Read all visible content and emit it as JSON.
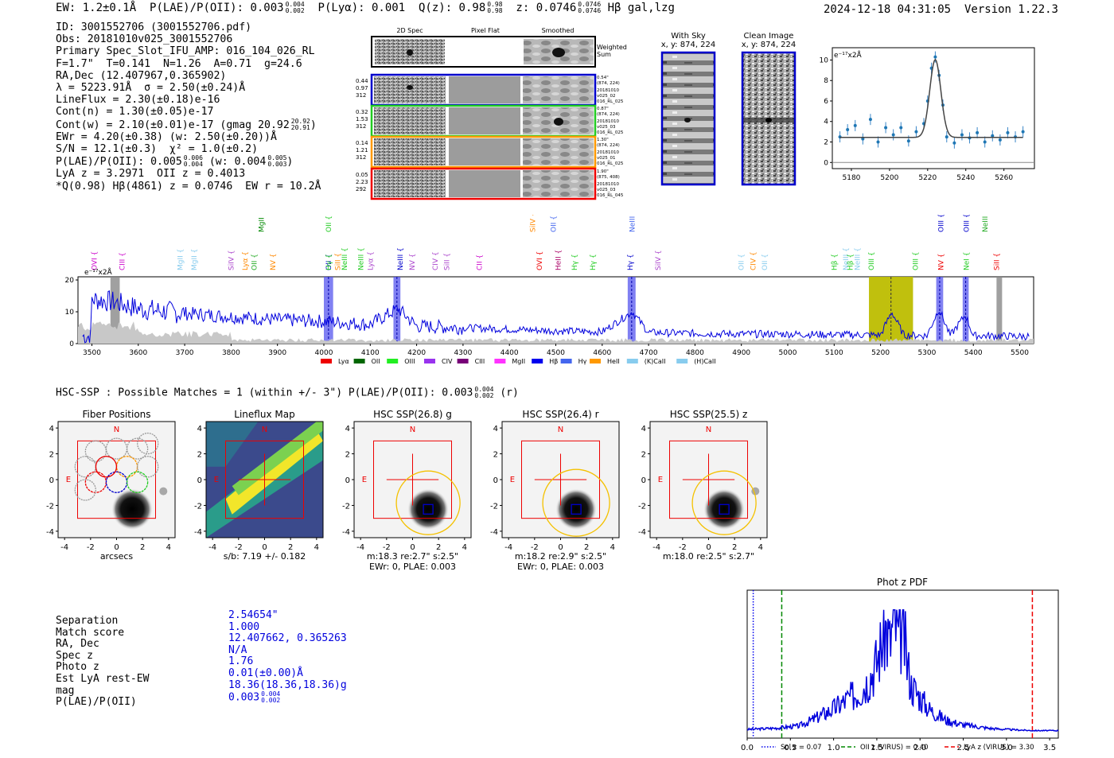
{
  "header": {
    "ew": "EW: 1.2±0.1Å",
    "plae_label": "P(LAE)/P(OII): 0.003",
    "plae_hi": "0.004",
    "plae_lo": "0.002",
    "plya": "P(Lyα): 0.001",
    "q_label": "Q(z): 0.98",
    "q_hi": "0.98",
    "q_lo": "0.98",
    "z_label": "z: 0.0746",
    "z_hi": "0.0746",
    "z_lo": "0.0746",
    "line_tag": "Hβ  gal,lzg",
    "timestamp": "2024-12-18 04:31:05",
    "version": "Version 1.22.3"
  },
  "info": {
    "id": "ID: 3001552706 (3001552706.pdf)",
    "obs": "Obs: 20181010v025_3001552706",
    "primary": "Primary Spec_Slot_IFU_AMP: 016_104_026_RL",
    "params": "F=1.7\"  T=0.141  N=1.26  A=0.71  g=24.6",
    "radec": "RA,Dec (12.407967,0.365902)",
    "lambda": "λ = 5223.91Å  σ = 2.50(±0.24)Å",
    "lineflux": "LineFlux = 2.30(±0.18)e-16",
    "cont_n": "Cont(n) = 1.30(±0.05)e-17",
    "cont_w": "Cont(w) = 2.10(±0.01)e-17 (gmag 20.92",
    "cont_w_hi": "20.92",
    "cont_w_lo": "20.91",
    "cont_w_close": ")",
    "ewr": "EWr = 4.20(±0.38) (w: 2.50(±0.20))Å",
    "sn": "S/N = 12.1(±0.3)  χ² = 1.0(±0.2)",
    "plae": "P(LAE)/P(OII): 0.005",
    "plae_hi": "0.006",
    "plae_lo": "0.004",
    "plae_w": "(w: 0.004",
    "plae_w_hi": "0.005",
    "plae_w_lo": "0.003",
    "plae_w_close": ")",
    "lya": "LyA z = 3.2971  OII z = 0.4013",
    "q": "*Q(0.98) Hβ(4861) z = 0.0746  EW r = 10.2Å"
  },
  "cutouts": {
    "col_headers": [
      "2D Spec",
      "Pixel Flat",
      "Smoothed"
    ],
    "weighted_label": [
      "Weighted",
      "Sum"
    ],
    "rows": [
      {
        "left": [
          "0.44",
          "0.97",
          "312"
        ],
        "right": [
          "0.54\"",
          "(874, 224)",
          "20181010",
          "v025_02",
          "016_RL_025"
        ],
        "color": "#0000cc"
      },
      {
        "left": [
          "0.32",
          "1.53",
          "312"
        ],
        "right": [
          "0.87\"",
          "(874, 224)",
          "20181010",
          "v025_03",
          "016_RL_025"
        ],
        "color": "#22cc22"
      },
      {
        "left": [
          "0.14",
          "1.21",
          "312"
        ],
        "right": [
          "1.30\"",
          "(874, 224)",
          "20181010",
          "v025_01",
          "016_RL_025"
        ],
        "color": "#ff9900"
      },
      {
        "left": [
          "0.05",
          "2.23",
          "292"
        ],
        "right": [
          "1.90\"",
          "(875, 408)",
          "20181010",
          "v025_03",
          "016_RL_045"
        ],
        "color": "#ee0000"
      }
    ]
  },
  "sky_panels": {
    "with_sky_title": "With Sky",
    "with_sky_xy": "x, y: 874, 224",
    "clean_title": "Clean Image",
    "clean_xy": "x, y: 874, 224"
  },
  "zoom_plot": {
    "unit_label": "e⁻¹⁷x2Å",
    "xticks": [
      "5180",
      "5200",
      "5220",
      "5240",
      "5260"
    ],
    "yticks": [
      "0",
      "2",
      "4",
      "6",
      "8",
      "10"
    ]
  },
  "full_spectrum": {
    "unit_label": "e⁻¹⁷x2Å",
    "xticks": [
      "3500",
      "3600",
      "3700",
      "3800",
      "3900",
      "4000",
      "4100",
      "4200",
      "4300",
      "4400",
      "4500",
      "4600",
      "4700",
      "4800",
      "4900",
      "5000",
      "5100",
      "5200",
      "5300",
      "5400",
      "5500"
    ],
    "yticks": [
      "0",
      "10",
      "20"
    ],
    "lines": [
      {
        "name": "OVI",
        "color": "#cc00cc"
      },
      {
        "name": "CIII",
        "color": "#cc00cc"
      },
      {
        "name": "MgII",
        "color": "#88ccee"
      },
      {
        "name": "MgII",
        "color": "#88ccee"
      },
      {
        "name": "SiIV",
        "color": "#aa44cc"
      },
      {
        "name": "Lyα",
        "color": "#ff8800"
      },
      {
        "name": "OII",
        "color": "#22aa22"
      },
      {
        "name": "MgII",
        "color": "#008800"
      },
      {
        "name": "NV",
        "color": "#ff8800"
      },
      {
        "name": "OII",
        "color": "#22cc22"
      },
      {
        "name": "OII",
        "color": "#0000cc"
      },
      {
        "name": "Hγ",
        "color": "#22cc22"
      },
      {
        "name": "SiII",
        "color": "#ff8800"
      },
      {
        "name": "NeIII",
        "color": "#22cc22"
      },
      {
        "name": "NeIII",
        "color": "#22cc22"
      },
      {
        "name": "Lyα",
        "color": "#aa44cc"
      },
      {
        "name": "NeIII",
        "color": "#0000cc"
      },
      {
        "name": "NV",
        "color": "#aa44cc"
      },
      {
        "name": "CIV",
        "color": "#aa44cc"
      },
      {
        "name": "SiII",
        "color": "#aa44cc"
      },
      {
        "name": "CII",
        "color": "#cc00cc"
      },
      {
        "name": "SiIV",
        "color": "#ff8800"
      },
      {
        "name": "OVI",
        "color": "#ee0000"
      },
      {
        "name": "OII",
        "color": "#4466ee"
      },
      {
        "name": "HeII",
        "color": "#aa0066"
      },
      {
        "name": "Hγ",
        "color": "#22cc22"
      },
      {
        "name": "Hγ",
        "color": "#22cc22"
      },
      {
        "name": "NeIII",
        "color": "#4466ee"
      },
      {
        "name": "Hγ",
        "color": "#0000cc"
      },
      {
        "name": "SiIV",
        "color": "#aa44cc"
      },
      {
        "name": "OII",
        "color": "#88ccee"
      },
      {
        "name": "CIV",
        "color": "#ff8800"
      },
      {
        "name": "OII",
        "color": "#88ccee"
      },
      {
        "name": "Hβ",
        "color": "#22cc22"
      },
      {
        "name": "NeIII",
        "color": "#88ccee"
      },
      {
        "name": "Hβ",
        "color": "#22cc22"
      },
      {
        "name": "NeIII",
        "color": "#88ccee"
      },
      {
        "name": "OIII",
        "color": "#22cc22"
      },
      {
        "name": "OIII",
        "color": "#22cc22"
      },
      {
        "name": "NV",
        "color": "#ee0000"
      },
      {
        "name": "OIII",
        "color": "#0000cc"
      },
      {
        "name": "NeI",
        "color": "#22cc22"
      },
      {
        "name": "OIII",
        "color": "#0000cc"
      },
      {
        "name": "NeIII",
        "color": "#22aa22"
      },
      {
        "name": "SiII",
        "color": "#ee0000"
      }
    ],
    "legend": [
      {
        "label": "Lyα",
        "color": "#ee0000"
      },
      {
        "label": "OII",
        "color": "#006600"
      },
      {
        "label": "OIII",
        "color": "#22ee22"
      },
      {
        "label": "CIV",
        "color": "#9933ee"
      },
      {
        "label": "CIII",
        "color": "#770077"
      },
      {
        "label": "MgII",
        "color": "#ff33ff"
      },
      {
        "label": "Hβ",
        "color": "#0000ee"
      },
      {
        "label": "Hγ",
        "color": "#4466ee"
      },
      {
        "label": "HeII",
        "color": "#ff9900"
      },
      {
        "label": "(K)CaII",
        "color": "#88ccee"
      },
      {
        "label": "(H)CaII",
        "color": "#88ccee"
      }
    ]
  },
  "hsc_line": {
    "text": "HSC-SSP : Possible Matches = 1 (within +/- 3\")  P(LAE)/P(OII): 0.003",
    "hi": "0.004",
    "lo": "0.002",
    "suffix": "(r)"
  },
  "image_panels": [
    {
      "title": "Fiber Positions",
      "xlabel": "arcsecs",
      "sub1": "",
      "sub2": ""
    },
    {
      "title": "Lineflux Map",
      "xlabel": "s/b: 7.19 +/- 0.182",
      "sub1": "",
      "sub2": ""
    },
    {
      "title": "HSC SSP(26.8) g",
      "xlabel": "m:18.3  re:2.7\"  s:2.5\"",
      "sub2": "EWr: 0, PLAE: 0.003"
    },
    {
      "title": "HSC SSP(26.4) r",
      "xlabel": "m:18.2  re:2.9\"  s:2.5\"",
      "sub2": "EWr: 0, PLAE: 0.003"
    },
    {
      "title": "HSC SSP(25.5) z",
      "xlabel": "m:18.0  re:2.5\"  s:2.7\"",
      "sub2": ""
    }
  ],
  "panel_axis": {
    "ticks": [
      "-4",
      "-2",
      "0",
      "2",
      "4"
    ],
    "north": "N",
    "east": "E"
  },
  "match_table": {
    "labels": [
      "Separation",
      "Match score",
      "RA, Dec",
      "Spec z",
      "Photo z",
      "Est LyA rest-EW",
      "mag",
      "P(LAE)/P(OII)"
    ],
    "values": [
      "2.54654\"",
      "1.000",
      "12.407662, 0.365263",
      "N/A",
      "1.76",
      "0.01(±0.00)Å",
      "18.36(18.36,18.36)g",
      "0.003"
    ],
    "last_hi": "0.004",
    "last_lo": "0.002"
  },
  "photz": {
    "title": "Phot z PDF",
    "xticks": [
      "0.0",
      "0.5",
      "1.0",
      "1.5",
      "2.0",
      "2.5",
      "3.0",
      "3.5"
    ],
    "legend": [
      {
        "label": "Sol z = 0.07",
        "color": "#0000ee",
        "style": "dotted"
      },
      {
        "label": "OII z (VIRUS) = 0.40",
        "color": "#008800",
        "style": "dashed"
      },
      {
        "label": "LyA z (VIRUS) = 3.30",
        "color": "#ee0000",
        "style": "dashed"
      }
    ]
  },
  "chart_data": [
    {
      "type": "line",
      "title": "",
      "xlabel": "",
      "ylabel": "e⁻¹⁷x2Å",
      "xlim": [
        3470,
        5530
      ],
      "ylim": [
        0,
        21
      ],
      "highlight_bands": [
        [
          4000,
          4020
        ],
        [
          4150,
          4165
        ],
        [
          4655,
          4672
        ],
        [
          5175,
          5270
        ],
        [
          5320,
          5335
        ],
        [
          5377,
          5390
        ]
      ],
      "series": [
        {
          "x": [
            3500,
            3550,
            3600,
            3700,
            3800,
            3900,
            4000,
            4050,
            4100,
            4160,
            4200,
            4300,
            4400,
            4500,
            4600,
            4665,
            4700,
            4800,
            4900,
            5000,
            5100,
            5200,
            5224,
            5250,
            5300,
            5326,
            5350,
            5383,
            5400,
            5500
          ],
          "values": [
            14,
            13,
            11,
            9.5,
            8.5,
            7.5,
            7,
            6.5,
            6,
            11,
            5.5,
            5,
            4.5,
            4,
            3.7,
            10,
            3.5,
            3.2,
            3,
            3,
            2.8,
            2.7,
            10,
            2.7,
            2.5,
            11,
            2.5,
            9,
            2.5,
            2.3
          ]
        }
      ]
    },
    {
      "type": "scatter",
      "title": "",
      "xlabel": "",
      "ylabel": "e⁻¹⁷x2Å",
      "xlim": [
        5170,
        5276
      ],
      "ylim": [
        -0.6,
        11.2
      ],
      "series": [
        {
          "x": [
            5174,
            5178,
            5182,
            5186,
            5190,
            5194,
            5198,
            5202,
            5206,
            5210,
            5214,
            5218,
            5220,
            5222,
            5224,
            5226,
            5228,
            5230,
            5234,
            5238,
            5242,
            5246,
            5250,
            5254,
            5258,
            5262,
            5266,
            5270
          ],
          "values": [
            2.5,
            3.2,
            3.6,
            2.3,
            4.2,
            2.0,
            3.4,
            2.7,
            3.4,
            2.1,
            3.0,
            3.8,
            6.0,
            9.2,
            10.3,
            8.5,
            5.6,
            2.5,
            1.9,
            2.7,
            2.4,
            2.9,
            2.0,
            2.6,
            2.2,
            2.9,
            2.5,
            3.0
          ]
        }
      ]
    },
    {
      "type": "line",
      "title": "Phot z PDF",
      "xlabel": "",
      "ylabel": "",
      "xlim": [
        0,
        3.6
      ],
      "series": [
        {
          "x": [
            0.0,
            0.3,
            0.6,
            0.8,
            1.0,
            1.2,
            1.3,
            1.4,
            1.5,
            1.6,
            1.65,
            1.7,
            1.75,
            1.8,
            1.85,
            1.9,
            2.0,
            2.1,
            2.2,
            2.3,
            2.5,
            2.8,
            3.0,
            3.3,
            3.6
          ],
          "values": [
            0.02,
            0.03,
            0.05,
            0.12,
            0.2,
            0.3,
            0.35,
            0.45,
            0.6,
            0.9,
            0.75,
            1.0,
            0.8,
            0.9,
            0.6,
            0.4,
            0.3,
            0.2,
            0.15,
            0.1,
            0.06,
            0.03,
            0.02,
            0.01,
            0.01
          ]
        }
      ],
      "vlines": [
        0.07,
        0.4,
        3.3
      ]
    }
  ]
}
